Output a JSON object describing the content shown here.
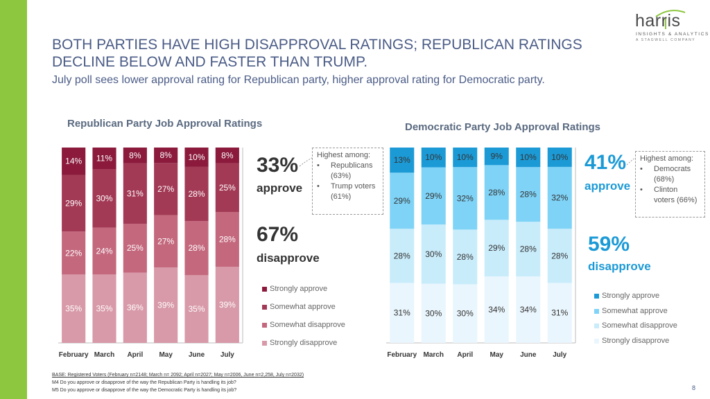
{
  "title": "BOTH PARTIES HAVE HIGH DISAPPROVAL RATINGS; REPUBLICAN RATINGS DECLINE BELOW AND FASTER THAN TRUMP.",
  "subtitle": "July poll sees lower approval rating for Republican party, higher approval rating for Democratic party.",
  "logo": {
    "name": "harris",
    "line1": "INSIGHTS & ANALYTICS",
    "line2": "A STAGWELL COMPANY"
  },
  "colors": {
    "rep": [
      "#d899a8",
      "#c4687d",
      "#a33a55",
      "#8b1a3c"
    ],
    "dem": [
      "#eaf6fd",
      "#c9ecfb",
      "#7fd3f7",
      "#1c9ad6"
    ],
    "rep_accent": "#8b1a3c",
    "dem_accent": "#1c9ad6"
  },
  "republican": {
    "title": "Republican Party Job Approval Ratings",
    "approve_pct": "33%",
    "approve_label": "approve",
    "disapprove_pct": "67%",
    "disapprove_label": "disapprove",
    "callout": {
      "head": "Highest among:",
      "items": [
        "Republicans (63%)",
        "Trump voters (61%)"
      ]
    },
    "legend": [
      "Strongly approve",
      "Somewhat approve",
      "Somewhat disapprove",
      "Strongly disapprove"
    ]
  },
  "democratic": {
    "title": "Democratic Party Job Approval Ratings",
    "approve_pct": "41%",
    "approve_label": "approve",
    "disapprove_pct": "59%",
    "disapprove_label": "disapprove",
    "callout": {
      "head": "Highest among:",
      "items": [
        "Democrats (68%)",
        "Clinton voters (66%)"
      ]
    },
    "legend": [
      "Strongly approve",
      "Somewhat approve",
      "Somewhat disapprove",
      "Strongly disapprove"
    ]
  },
  "chart_data": [
    {
      "type": "bar",
      "stacked": true,
      "title": "Republican Party Job Approval Ratings",
      "categories": [
        "February",
        "March",
        "April",
        "May",
        "June",
        "July"
      ],
      "series": [
        {
          "name": "Strongly disapprove",
          "values": [
            35,
            35,
            36,
            39,
            35,
            39
          ]
        },
        {
          "name": "Somewhat disapprove",
          "values": [
            22,
            24,
            25,
            27,
            28,
            28
          ]
        },
        {
          "name": "Somewhat approve",
          "values": [
            29,
            30,
            31,
            27,
            28,
            25
          ]
        },
        {
          "name": "Strongly approve",
          "values": [
            14,
            11,
            8,
            8,
            10,
            8
          ]
        }
      ],
      "labels": [
        "14%",
        "11%",
        "8%",
        "8%",
        "10%",
        "8%",
        "29%",
        "30%",
        "31%",
        "27%",
        "28%",
        "25%",
        "22%",
        "24%",
        "25%",
        "27%",
        "28%",
        "28%",
        "35%",
        "35%",
        "36%",
        "39%",
        "35%",
        "39%"
      ]
    },
    {
      "type": "bar",
      "stacked": true,
      "title": "Democratic Party Job Approval Ratings",
      "categories": [
        "February",
        "March",
        "April",
        "May",
        "June",
        "July"
      ],
      "series": [
        {
          "name": "Strongly disapprove",
          "values": [
            31,
            30,
            30,
            34,
            34,
            31
          ]
        },
        {
          "name": "Somewhat disapprove",
          "values": [
            28,
            30,
            28,
            29,
            28,
            28
          ]
        },
        {
          "name": "Somewhat approve",
          "values": [
            29,
            29,
            32,
            28,
            28,
            32
          ]
        },
        {
          "name": "Strongly approve",
          "values": [
            13,
            10,
            10,
            9,
            10,
            10
          ]
        }
      ],
      "labels": [
        "13%",
        "10%",
        "10%",
        "9%",
        "10%",
        "10%",
        "29%",
        "29%",
        "32%",
        "28%",
        "28%",
        "32%",
        "28%",
        "30%",
        "28%",
        "29%",
        "28%",
        "28%",
        "31%",
        "30%",
        "30%",
        "34%",
        "34%",
        "31%"
      ]
    }
  ],
  "footer": {
    "base": "BASE: Registered Voters (February n=2148; March n= 2092; April n=2027; May n=2006, June n=2,258, July n=2032)",
    "q1": "M4 Do you approve or disapprove of the way the Republican Party is handling its job?",
    "q2": "M5 Do you approve or disapprove of the way the Democratic Party is handling its job?"
  },
  "page_number": "8"
}
